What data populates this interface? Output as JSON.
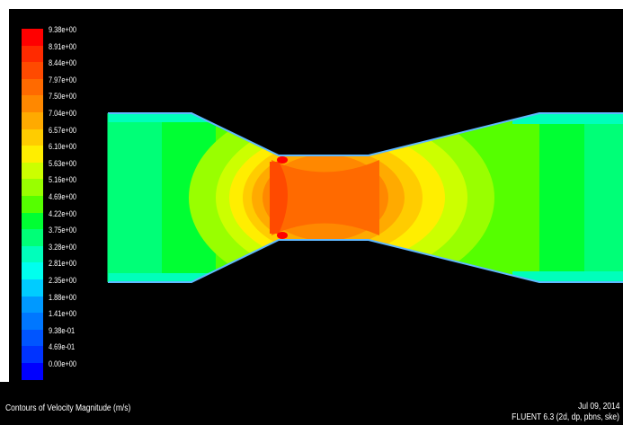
{
  "legend": {
    "levels": [
      {
        "label": "9.38e+00",
        "color": "#ff0000"
      },
      {
        "label": "8.91e+00",
        "color": "#ff2a00"
      },
      {
        "label": "8.44e+00",
        "color": "#ff4a00"
      },
      {
        "label": "7.97e+00",
        "color": "#ff6a00"
      },
      {
        "label": "7.50e+00",
        "color": "#ff8800"
      },
      {
        "label": "7.04e+00",
        "color": "#ffaa00"
      },
      {
        "label": "6.57e+00",
        "color": "#ffcc00"
      },
      {
        "label": "6.10e+00",
        "color": "#ffee00"
      },
      {
        "label": "5.63e+00",
        "color": "#ccff00"
      },
      {
        "label": "5.16e+00",
        "color": "#99ff00"
      },
      {
        "label": "4.69e+00",
        "color": "#55ff00"
      },
      {
        "label": "4.22e+00",
        "color": "#00ff33"
      },
      {
        "label": "3.75e+00",
        "color": "#00ff77"
      },
      {
        "label": "3.28e+00",
        "color": "#00ffbb"
      },
      {
        "label": "2.81e+00",
        "color": "#00ffee"
      },
      {
        "label": "2.35e+00",
        "color": "#00ccff"
      },
      {
        "label": "1.88e+00",
        "color": "#0099ff"
      },
      {
        "label": "1.41e+00",
        "color": "#0077ff"
      },
      {
        "label": "9.38e-01",
        "color": "#0055ff"
      },
      {
        "label": "4.69e-01",
        "color": "#0033ff"
      },
      {
        "label": "0.00e+00",
        "color": "#0000ff"
      }
    ]
  },
  "footer": {
    "caption": "Contours of Velocity Magnitude (m/s)",
    "date": "Jul 09, 2014",
    "version": "FLUENT 6.3 (2d, dp, pbns, ske)"
  },
  "colors": {
    "background": "#000000",
    "wall": "#5fb8ff"
  }
}
